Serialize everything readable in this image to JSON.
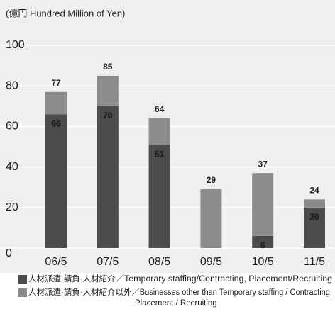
{
  "chart_data": {
    "type": "stacked_bar",
    "subtitle": "(億円 Hundred Million of Yen)",
    "categories": [
      "06/5",
      "07/5",
      "08/5",
      "09/5",
      "10/5",
      "11/5"
    ],
    "series": [
      {
        "name": "人材派遣·請負·人材紹介",
        "description_lines": [
          "／Temporary staffing/Contracting, Placement/Recruiting"
        ],
        "color": "#4b4b4b",
        "values": [
          66,
          70,
          51,
          null,
          6,
          20
        ]
      },
      {
        "name": "人材派遣·請負·人材紹介以外",
        "description_lines": [
          "／Businesses other than Temporary staffing / Contracting,",
          "Placement / Recruiting"
        ],
        "color": "#8c8c8c",
        "values": [
          11,
          15,
          13,
          29,
          31,
          4
        ]
      }
    ],
    "totals": [
      77,
      85,
      64,
      29,
      37,
      24
    ],
    "ylim": [
      0,
      100
    ],
    "yticks": [
      0,
      20,
      40,
      60,
      80,
      100
    ],
    "grid": true
  }
}
